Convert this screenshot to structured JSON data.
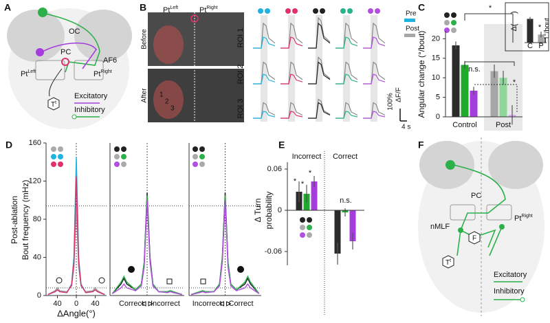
{
  "panel_a": {
    "label": "A",
    "oc": "OC",
    "pc": "PC",
    "af6": "AF6",
    "pt_left": {
      "base": "Pt",
      "sup": "Left"
    },
    "pt_right": {
      "base": "Pt",
      "sup": "Right"
    },
    "target": {
      "base": "T",
      "sup": "t"
    },
    "excitatory": "Excitatory",
    "inhibitory": "Inhibitory"
  },
  "panel_b": {
    "label": "B",
    "pt_left": {
      "base": "Pt",
      "sup": "Left"
    },
    "pt_right": {
      "base": "Pt",
      "sup": "Right"
    },
    "before": "Before",
    "after": "After",
    "image_rois": [
      "1",
      "2",
      "3"
    ],
    "rois": [
      "ROI 1",
      "ROI 2",
      "ROI 3"
    ],
    "legend": [
      {
        "name": "Pre",
        "color": "#1fb3e0"
      },
      {
        "name": "Post",
        "color": "#a6a6a6"
      }
    ],
    "scale_amplitude": "100%",
    "scale_unit": "ΔF/F",
    "scale_time": "4 s"
  },
  "panel_f": {
    "label": "F",
    "pc": "PC",
    "pt_right": {
      "base": "Pt",
      "sup": "Right"
    },
    "nmlf": "nMLF",
    "f": "F",
    "target": {
      "base": "T",
      "sup": "t"
    },
    "excitatory": "Excitatory",
    "inhibitory": "Inhibitory"
  },
  "chart_data": [
    {
      "panel": "C",
      "type": "bar",
      "ylabel": "Angular change (°/bout)",
      "categories": [
        "Control",
        "Post"
      ],
      "series": [
        {
          "colors": [
            "#2b2b2b",
            "#a6a6a6"
          ],
          "values": [
            18.3,
            11.7
          ],
          "errors": [
            1.0,
            1.7
          ]
        },
        {
          "colors": [
            "#1faa2c",
            "#8fd69a"
          ],
          "values": [
            13.3,
            10.0
          ],
          "errors": [
            1.0,
            1.8
          ]
        },
        {
          "colors": [
            "#a43ddb",
            "#d8a8ef"
          ],
          "values": [
            6.7,
            0.5
          ],
          "errors": [
            1.0,
            2.5
          ]
        }
      ],
      "ylim": [
        0,
        22
      ],
      "yticks": [
        0,
        5,
        10,
        15,
        20
      ],
      "annotations": [
        "*",
        "n.s.",
        "*"
      ]
    },
    {
      "type": "bar",
      "ylabel": [
        "Δ(",
        ")"
      ],
      "categories": [
        "C",
        "P"
      ],
      "series": [
        {
          "colors": [
            "#2b2b2b",
            "#a6a6a6"
          ],
          "values": [
            5.0,
            1.7
          ],
          "errors": [
            0.4,
            0.6
          ]
        }
      ],
      "ylim": [
        0,
        5.5
      ],
      "scale_bar": {
        "value": 1,
        "label": "1°/bout"
      },
      "annotations": [
        "*"
      ]
    },
    {
      "panel": "D",
      "type": "line",
      "ylabel": [
        "Post-ablation",
        "Bout frequency (mHz)"
      ],
      "xlabel": "ΔAngle(°)",
      "x": [
        -60,
        -45,
        -40,
        -35,
        -20,
        -10,
        -5,
        0,
        5,
        10,
        20,
        35,
        40,
        45,
        60
      ],
      "series": [
        {
          "color": "#9a9a9a",
          "values": [
            1,
            5,
            8,
            5,
            4,
            10,
            30,
            95,
            30,
            10,
            4,
            5,
            8,
            5,
            1
          ]
        },
        {
          "color": "#1fb3e0",
          "values": [
            1,
            4,
            6,
            4,
            3,
            12,
            40,
            145,
            40,
            12,
            3,
            4,
            6,
            4,
            1
          ]
        },
        {
          "color": "#e0306f",
          "values": [
            1,
            4,
            6,
            4,
            3,
            11,
            35,
            125,
            35,
            11,
            3,
            4,
            6,
            4,
            1
          ]
        }
      ],
      "xlim": [
        -64,
        64
      ],
      "ylim": [
        0,
        160
      ],
      "xticks": [
        {
          "value": -40,
          "label": "40"
        },
        0,
        40
      ],
      "yticks": [
        0,
        40,
        80,
        120,
        160
      ],
      "reference_lines": [
        94,
        8
      ]
    },
    {
      "type": "line",
      "x": [
        -60,
        -45,
        -40,
        -35,
        -20,
        -10,
        -5,
        0,
        5,
        10,
        20,
        35,
        40,
        45,
        60
      ],
      "series": [
        {
          "color": "#222222",
          "values": [
            2,
            12,
            18,
            12,
            6,
            12,
            35,
            108,
            40,
            12,
            4,
            4,
            5,
            4,
            1
          ]
        },
        {
          "color": "#2bb04a",
          "values": [
            2,
            14,
            20,
            14,
            6,
            12,
            35,
            105,
            38,
            12,
            4,
            4,
            5,
            4,
            1
          ]
        },
        {
          "color": "#b04fe0",
          "values": [
            2,
            8,
            12,
            8,
            5,
            10,
            30,
            100,
            35,
            10,
            4,
            3,
            4,
            3,
            1
          ]
        }
      ],
      "xlim": [
        -64,
        64
      ],
      "ylim": [
        0,
        160
      ],
      "x_labels": [
        "Correct",
        "Incorrect"
      ],
      "reference_lines": [
        94,
        8
      ]
    },
    {
      "type": "line",
      "x": [
        -60,
        -45,
        -40,
        -35,
        -20,
        -10,
        -5,
        0,
        5,
        10,
        20,
        35,
        40,
        45,
        60
      ],
      "series": [
        {
          "color": "#222222",
          "values": [
            1,
            4,
            5,
            4,
            4,
            12,
            40,
            108,
            35,
            12,
            6,
            12,
            18,
            12,
            2
          ]
        },
        {
          "color": "#2bb04a",
          "values": [
            1,
            4,
            5,
            4,
            4,
            12,
            38,
            105,
            35,
            12,
            6,
            14,
            20,
            14,
            2
          ]
        },
        {
          "color": "#b04fe0",
          "values": [
            1,
            3,
            4,
            3,
            4,
            10,
            35,
            100,
            30,
            10,
            5,
            8,
            12,
            8,
            2
          ]
        }
      ],
      "xlim": [
        -64,
        64
      ],
      "ylim": [
        0,
        160
      ],
      "x_labels": [
        "Incorrect",
        "Correct"
      ],
      "reference_lines": [
        94,
        8
      ]
    },
    {
      "panel": "E",
      "type": "bar",
      "ylabel": [
        "Δ Turn",
        "probability"
      ],
      "categories": [
        "Incorrect",
        "Correct"
      ],
      "series": [
        {
          "color": "#2b2b2b",
          "values": [
            0.027,
            -0.063
          ],
          "errors": [
            0.015,
            0.016
          ]
        },
        {
          "color": "#1faa2c",
          "values": [
            0.024,
            -0.003
          ],
          "errors": [
            0.013,
            0.006
          ]
        },
        {
          "color": "#a43ddb",
          "values": [
            0.042,
            -0.045
          ],
          "errors": [
            0.008,
            0.012
          ]
        }
      ],
      "ylim": [
        -0.08,
        0.07
      ],
      "yticks": [
        -0.06,
        0,
        0.06
      ],
      "annotations": [
        "*",
        "*",
        "*",
        "n.s."
      ]
    }
  ]
}
